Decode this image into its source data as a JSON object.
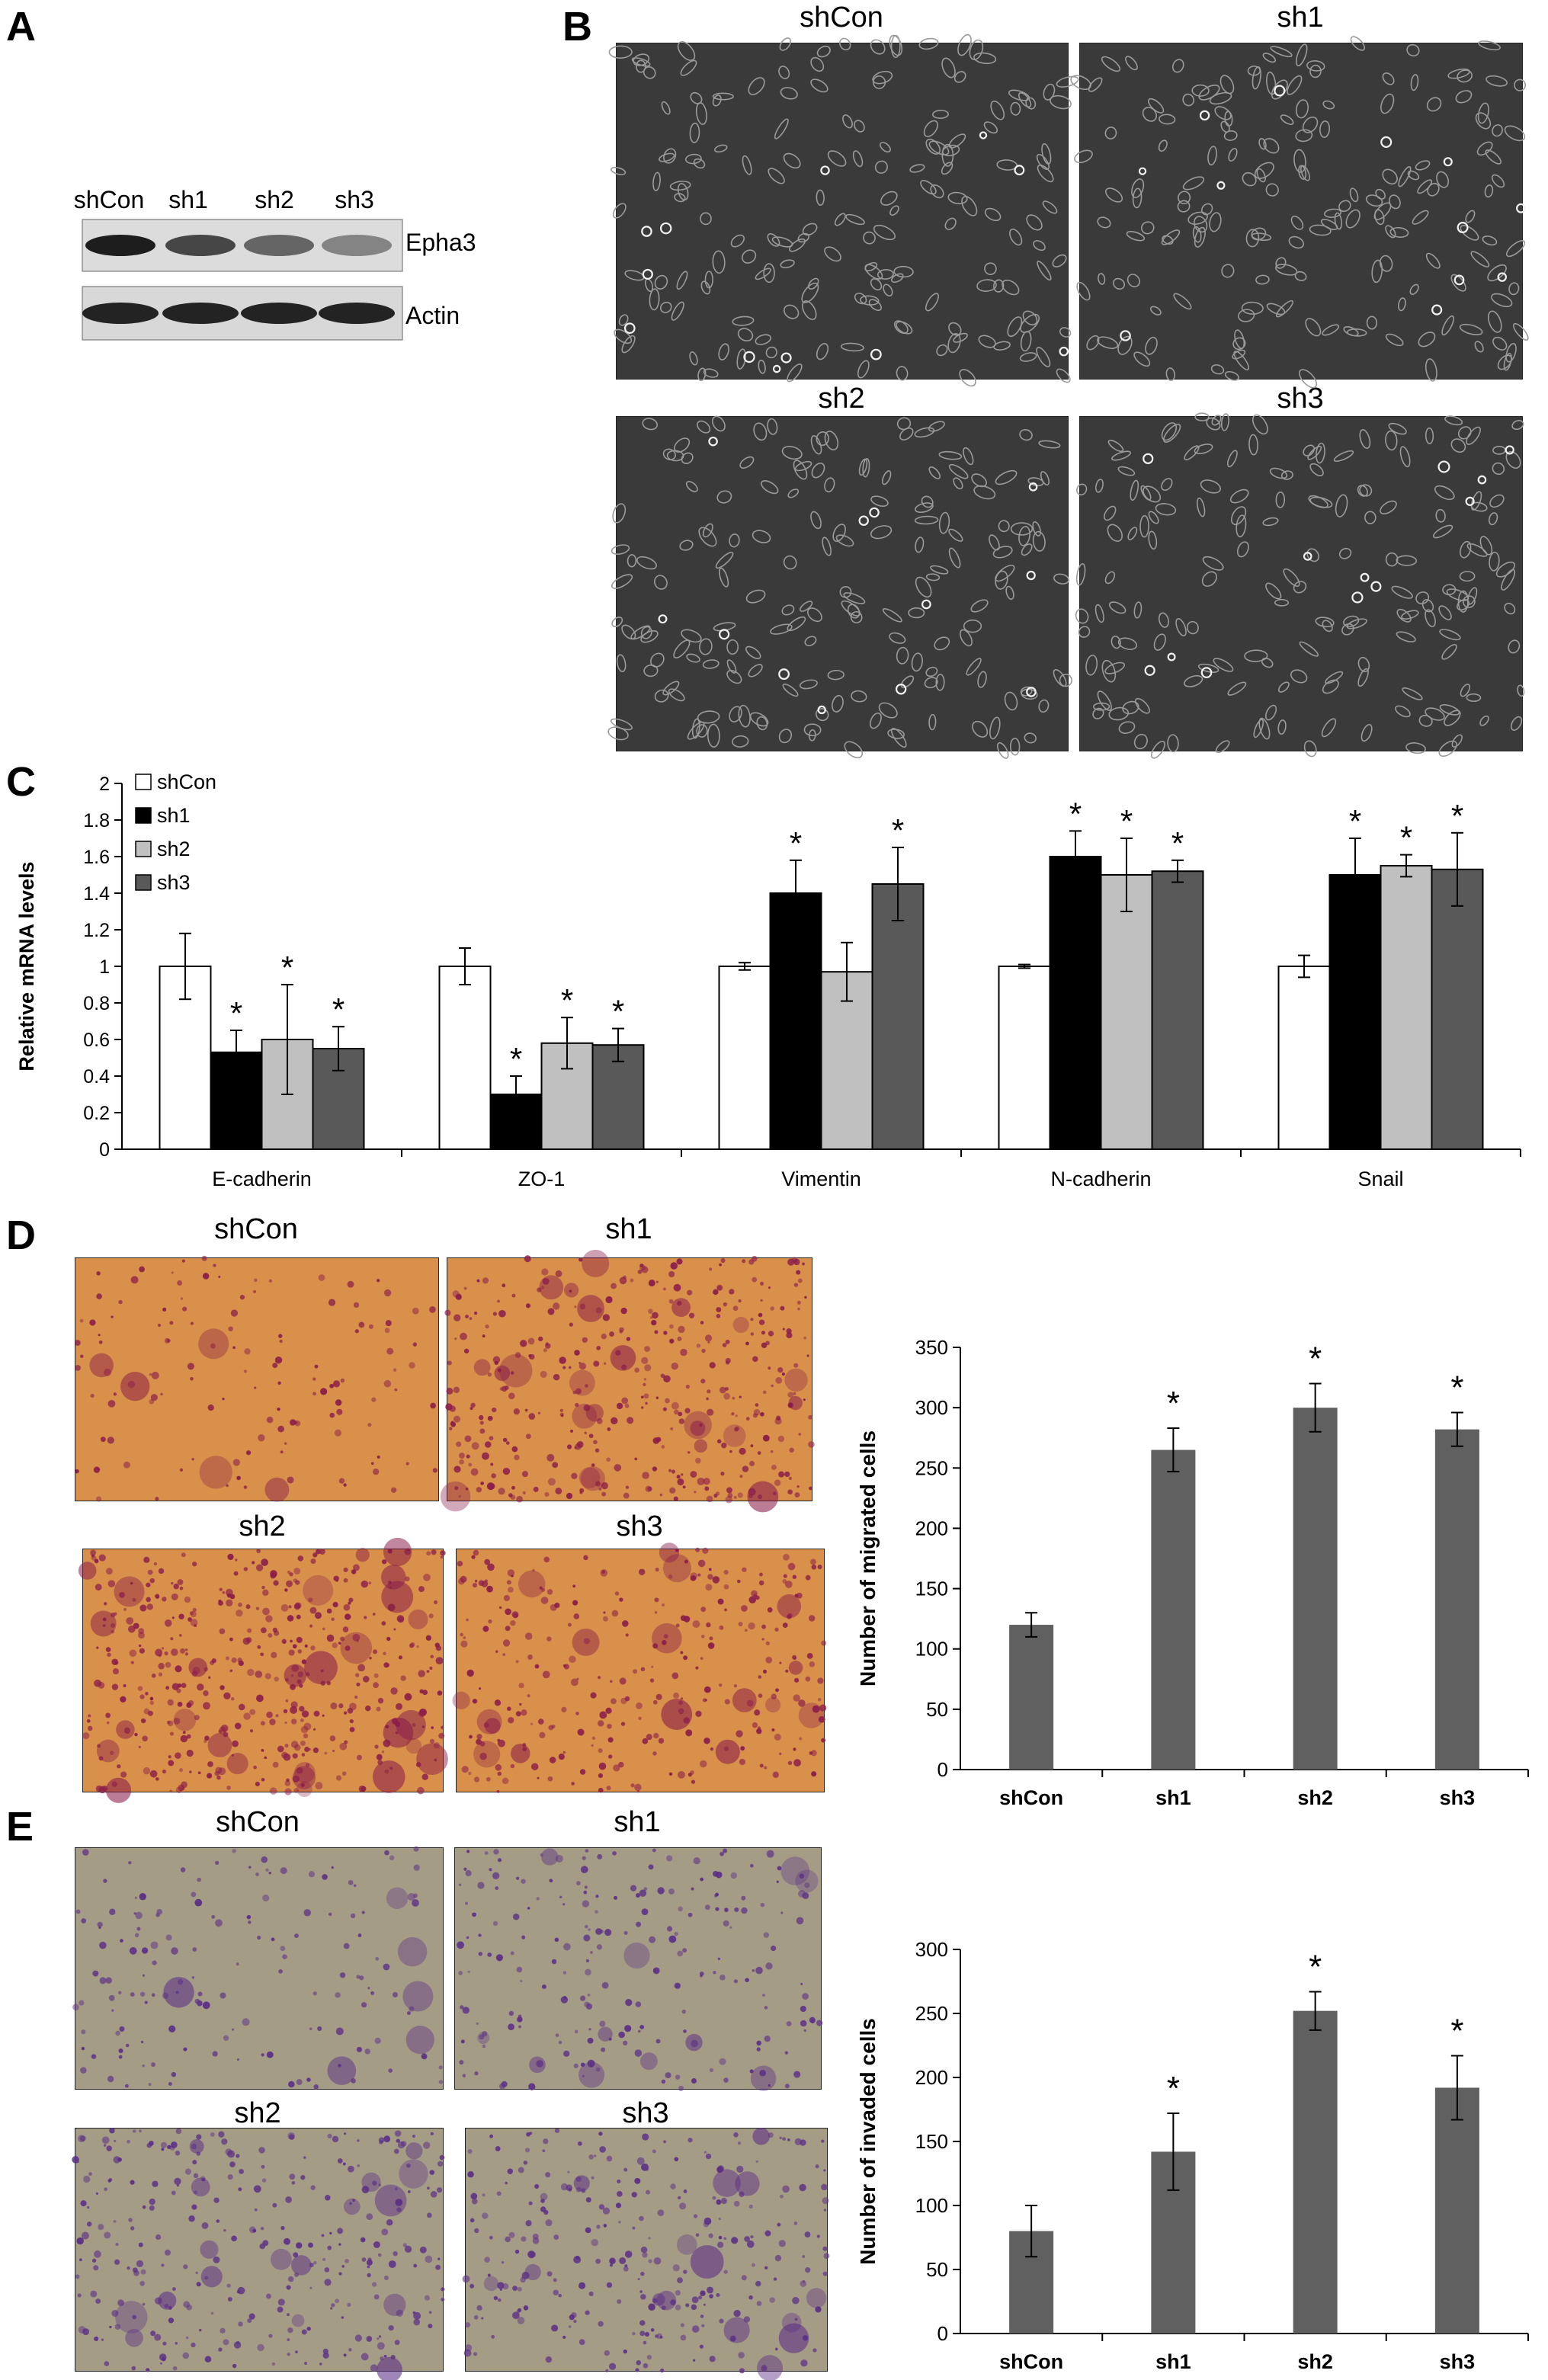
{
  "panels": {
    "A": {
      "letter": "A",
      "lanes": [
        "shCon",
        "sh1",
        "sh2",
        "sh3"
      ],
      "proteins": [
        "Epha3",
        "Actin"
      ],
      "epha3_intensity": [
        0.95,
        0.72,
        0.55,
        0.38
      ]
    },
    "B": {
      "letter": "B",
      "images": [
        "shCon",
        "sh1",
        "sh2",
        "sh3"
      ]
    },
    "C": {
      "letter": "C"
    },
    "D": {
      "letter": "D",
      "images": [
        "shCon",
        "sh1",
        "sh2",
        "sh3"
      ],
      "stain_density": [
        0.15,
        0.75,
        0.9,
        0.55
      ]
    },
    "E": {
      "letter": "E",
      "images": [
        "shCon",
        "sh1",
        "sh2",
        "sh3"
      ],
      "stain_density": [
        0.2,
        0.35,
        0.55,
        0.5
      ]
    }
  },
  "colors": {
    "shCon": "#ffffff",
    "sh1": "#000000",
    "sh2": "#c0c0c0",
    "sh3": "#595959",
    "bar_gray": "#606060",
    "micro_bg": "#3a3a3a",
    "d_bg": "#d9904a",
    "d_stain": "#8a1d4a",
    "e_bg": "#a59c86",
    "e_stain": "#5b2f86"
  },
  "chart_data": [
    {
      "panel": "C",
      "type": "bar",
      "categories": [
        "E-cadherin",
        "ZO-1",
        "Vimentin",
        "N-cadherin",
        "Snail"
      ],
      "series": [
        {
          "name": "shCon",
          "values": [
            1.0,
            1.0,
            1.0,
            1.0,
            1.0
          ],
          "errors": [
            0.18,
            0.1,
            0.02,
            0.01,
            0.06
          ],
          "significant": [
            false,
            false,
            false,
            false,
            false
          ]
        },
        {
          "name": "sh1",
          "values": [
            0.53,
            0.3,
            1.4,
            1.6,
            1.5
          ],
          "errors": [
            0.12,
            0.1,
            0.18,
            0.14,
            0.2
          ],
          "significant": [
            true,
            true,
            true,
            true,
            true
          ]
        },
        {
          "name": "sh2",
          "values": [
            0.6,
            0.58,
            0.97,
            1.5,
            1.55
          ],
          "errors": [
            0.3,
            0.14,
            0.16,
            0.2,
            0.06
          ],
          "significant": [
            true,
            true,
            false,
            true,
            true
          ]
        },
        {
          "name": "sh3",
          "values": [
            0.55,
            0.57,
            1.45,
            1.52,
            1.53
          ],
          "errors": [
            0.12,
            0.09,
            0.2,
            0.06,
            0.2
          ],
          "significant": [
            true,
            true,
            true,
            true,
            true
          ]
        }
      ],
      "ylabel": "Relative mRNA levels",
      "xlabel": "",
      "ylim": [
        0,
        2
      ],
      "yticks": [
        "0",
        "0.2",
        "0.4",
        "0.6",
        "0.8",
        "1",
        "1.2",
        "1.4",
        "1.6",
        "1.8",
        "2"
      ],
      "significance_marker": "*",
      "legend": "top-left",
      "grid": false
    },
    {
      "panel": "D",
      "type": "bar",
      "categories": [
        "shCon",
        "sh1",
        "sh2",
        "sh3"
      ],
      "values": [
        120,
        265,
        300,
        282
      ],
      "errors": [
        10,
        18,
        20,
        14
      ],
      "significant": [
        false,
        true,
        true,
        true
      ],
      "ylabel": "Number of migrated cells",
      "xlabel": "",
      "ylim": [
        0,
        350
      ],
      "yticks": [
        "0",
        "50",
        "100",
        "150",
        "200",
        "250",
        "300",
        "350"
      ],
      "significance_marker": "*",
      "grid": false
    },
    {
      "panel": "E",
      "type": "bar",
      "categories": [
        "shCon",
        "sh1",
        "sh2",
        "sh3"
      ],
      "values": [
        80,
        142,
        252,
        192
      ],
      "errors": [
        20,
        30,
        15,
        25
      ],
      "significant": [
        false,
        true,
        true,
        true
      ],
      "ylabel": "Number of invaded cells",
      "xlabel": "",
      "ylim": [
        0,
        300
      ],
      "yticks": [
        "0",
        "50",
        "100",
        "150",
        "200",
        "250",
        "300"
      ],
      "significance_marker": "*",
      "grid": false
    }
  ]
}
